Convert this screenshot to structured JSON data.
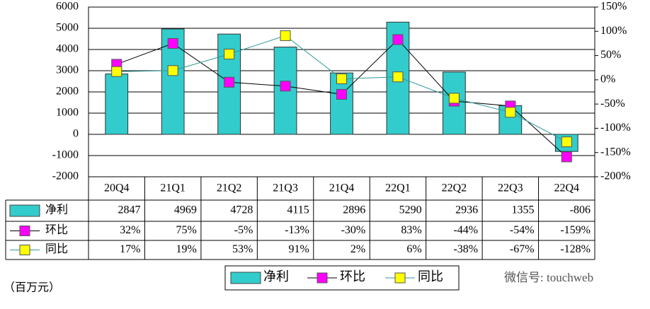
{
  "chart_data": {
    "type": "combo",
    "categories": [
      "20Q4",
      "21Q1",
      "21Q2",
      "21Q3",
      "21Q4",
      "22Q1",
      "22Q2",
      "22Q3",
      "22Q4"
    ],
    "series": [
      {
        "name": "净利",
        "type": "bar",
        "color": "#33cccc",
        "values": [
          2847,
          4969,
          4728,
          4115,
          2896,
          5290,
          2936,
          1355,
          -806
        ]
      },
      {
        "name": "环比",
        "type": "line",
        "axis": "y2",
        "color": "#000000",
        "marker_color": "#ff00ff",
        "values": [
          32,
          75,
          -5,
          -13,
          -30,
          83,
          -44,
          -54,
          -159
        ],
        "value_labels": [
          "32%",
          "75%",
          "-5%",
          "-13%",
          "-30%",
          "83%",
          "-44%",
          "-54%",
          "-159%"
        ]
      },
      {
        "name": "同比",
        "type": "line",
        "axis": "y2",
        "color": "#339999",
        "marker_color": "#ffff00",
        "values": [
          17,
          19,
          53,
          91,
          2,
          6,
          -38,
          -67,
          -128
        ],
        "value_labels": [
          "17%",
          "19%",
          "53%",
          "91%",
          "2%",
          "6%",
          "-38%",
          "-67%",
          "-128%"
        ]
      }
    ],
    "ylim": [
      -2000,
      6000
    ],
    "yticks": [
      -2000,
      -1000,
      0,
      1000,
      2000,
      3000,
      4000,
      5000,
      6000
    ],
    "y2lim": [
      -200,
      150
    ],
    "y2ticks": [
      {
        "value": -200,
        "label": "-200%"
      },
      {
        "value": -150,
        "label": "-150%"
      },
      {
        "value": -100,
        "label": "-100%"
      },
      {
        "value": -50,
        "label": "-50%"
      },
      {
        "value": 0,
        "label": "0%"
      },
      {
        "value": 50,
        "label": "50%"
      },
      {
        "value": 100,
        "label": "100%"
      },
      {
        "value": 150,
        "label": "150%"
      }
    ],
    "grid": true,
    "unit_label": "（百万元）",
    "watermark": "微信号: touchweb"
  }
}
